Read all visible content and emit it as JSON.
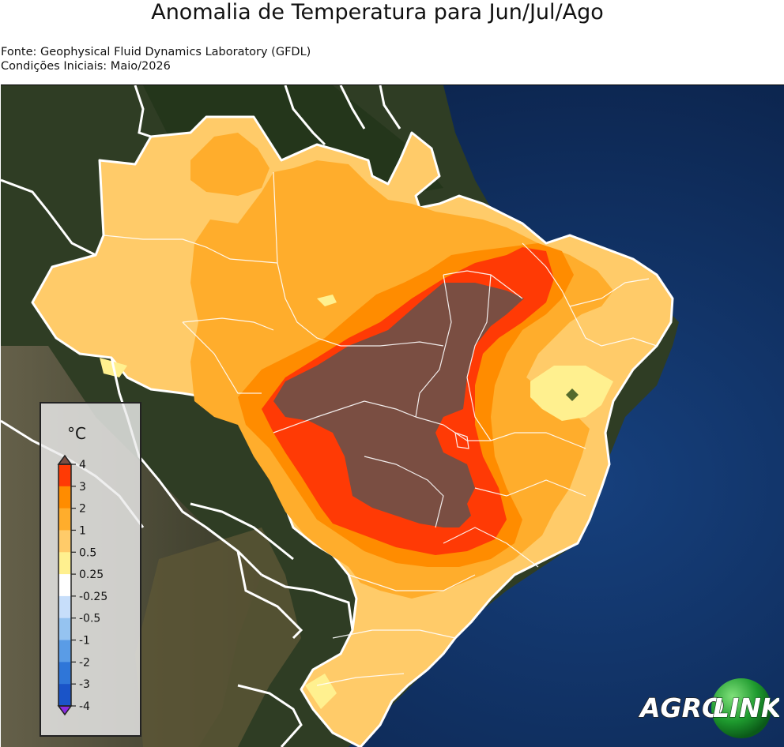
{
  "title": "Anomalia de Temperatura para Jun/Jul/Ago",
  "subtitle_lines": [
    "Fonte: Geophysical Fluid Dynamics Laboratory (GFDL)",
    "Condições Iniciais: Maio/2026"
  ],
  "legend": {
    "unit": "°C",
    "tick_labels": [
      "4",
      "3",
      "2",
      "1",
      "0.5",
      "0.25",
      "-0.25",
      "-0.5",
      "-1",
      "-2",
      "-3",
      "-4"
    ],
    "bands": [
      {
        "from": "3",
        "to": "4",
        "color": "#ff3a05"
      },
      {
        "from": "2",
        "to": "3",
        "color": "#ff8c00"
      },
      {
        "from": "1",
        "to": "2",
        "color": "#ffad2c"
      },
      {
        "from": "0.5",
        "to": "1",
        "color": "#ffcb69"
      },
      {
        "from": "0.25",
        "to": "0.5",
        "color": "#fff08f"
      },
      {
        "from": "-0.25",
        "to": "0.25",
        "color": "#ffffff"
      },
      {
        "from": "-0.5",
        "to": "-0.25",
        "color": "#c7defa"
      },
      {
        "from": "-1",
        "to": "-0.5",
        "color": "#95c3f0"
      },
      {
        "from": "-2",
        "to": "-1",
        "color": "#5a9ce6"
      },
      {
        "from": "-3",
        "to": "-2",
        "color": "#2f76d8"
      },
      {
        "from": "-4",
        "to": "-3",
        "color": "#1a54c8"
      }
    ],
    "over_color": "#7a4e42",
    "under_color": "#8a2be2"
  },
  "map_colors": {
    "ocean": "#0d2a57",
    "land": "#2d3a22",
    "anom_050_1": "#ffcb69",
    "anom_1_2": "#ffad2c",
    "anom_2_3": "#ff8c00",
    "anom_3_4": "#ff3a05",
    "anom_above_4": "#7a4e42",
    "anom_025_050": "#fff08f",
    "borders": "#ffffff"
  },
  "logo": {
    "part1": "AGRO",
    "part2": "LINK"
  }
}
